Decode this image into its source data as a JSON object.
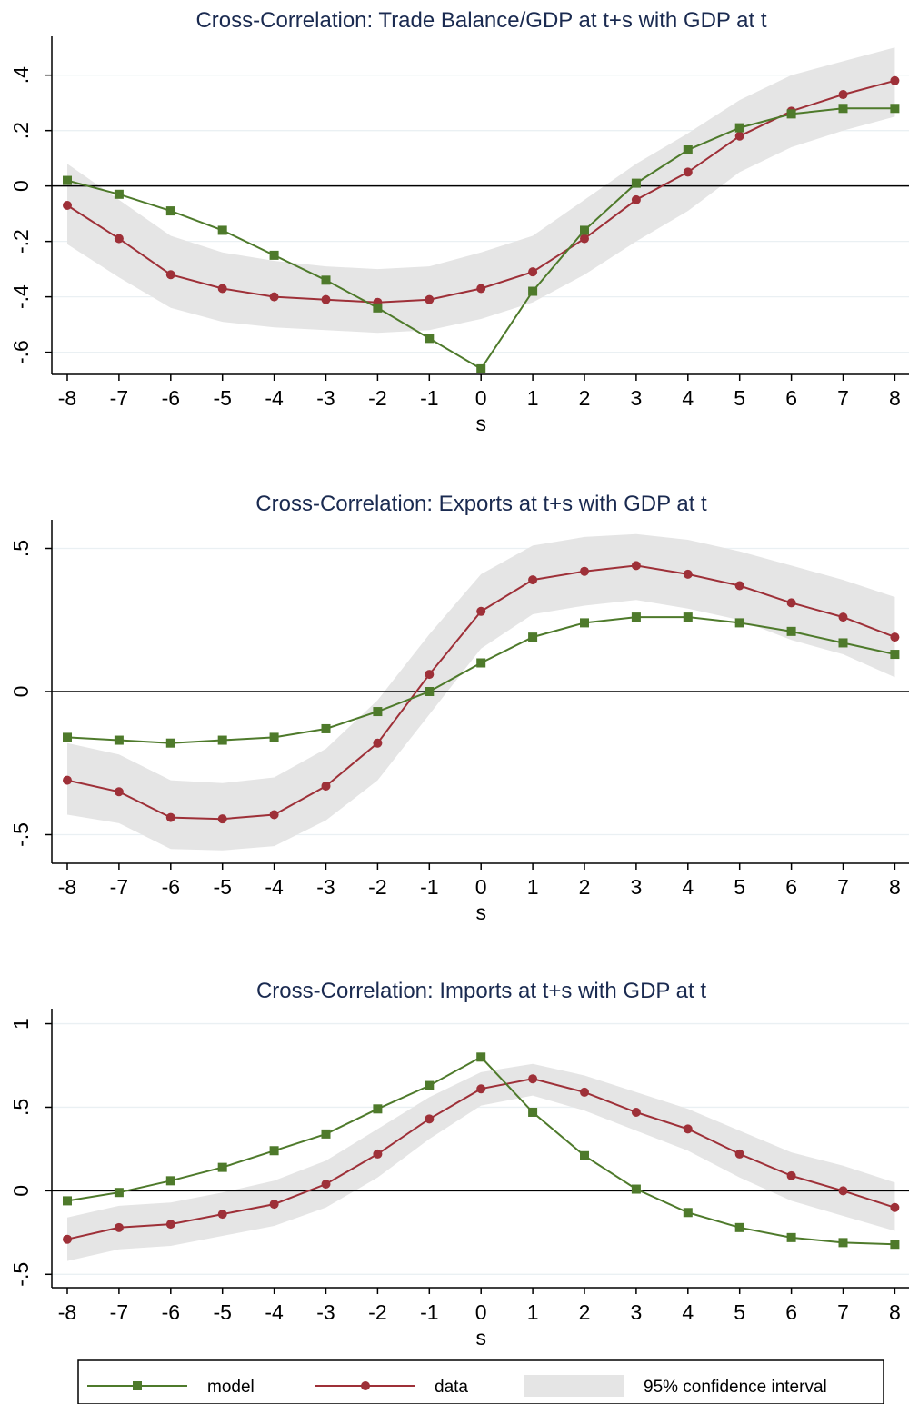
{
  "colors": {
    "model": "#4e7a2b",
    "data": "#9e3038",
    "ci": "#e5e5e5",
    "title": "#1a2a50"
  },
  "legend": {
    "model": "model",
    "data": "data",
    "ci": "95% confidence interval"
  },
  "chart_data": [
    {
      "type": "line",
      "title": "Cross-Correlation: Trade Balance/GDP at t+s with GDP at t",
      "xlabel": "s",
      "ylabel": "",
      "x": [
        -8,
        -7,
        -6,
        -5,
        -4,
        -3,
        -2,
        -1,
        0,
        1,
        2,
        3,
        4,
        5,
        6,
        7,
        8
      ],
      "xticks": [
        "-8",
        "-7",
        "-6",
        "-5",
        "-4",
        "-3",
        "-2",
        "-1",
        "0",
        "1",
        "2",
        "3",
        "4",
        "5",
        "6",
        "7",
        "8"
      ],
      "ylim": [
        -0.68,
        0.54
      ],
      "yticks": [
        {
          "v": -0.6,
          "t": "-.6"
        },
        {
          "v": -0.4,
          "t": "-.4"
        },
        {
          "v": -0.2,
          "t": "-.2"
        },
        {
          "v": 0,
          "t": "0"
        },
        {
          "v": 0.2,
          "t": ".2"
        },
        {
          "v": 0.4,
          "t": ".4"
        }
      ],
      "grid": true,
      "series": [
        {
          "name": "model",
          "values": [
            0.02,
            -0.03,
            -0.09,
            -0.16,
            -0.25,
            -0.34,
            -0.44,
            -0.55,
            -0.66,
            -0.38,
            -0.16,
            0.01,
            0.13,
            0.21,
            0.26,
            0.28,
            0.28
          ]
        },
        {
          "name": "data",
          "values": [
            -0.07,
            -0.19,
            -0.32,
            -0.37,
            -0.4,
            -0.41,
            -0.42,
            -0.41,
            -0.37,
            -0.31,
            -0.19,
            -0.05,
            0.05,
            0.18,
            0.27,
            0.33,
            0.38
          ]
        }
      ],
      "ci": {
        "lower": [
          -0.21,
          -0.33,
          -0.44,
          -0.49,
          -0.51,
          -0.52,
          -0.53,
          -0.52,
          -0.48,
          -0.42,
          -0.32,
          -0.2,
          -0.09,
          0.05,
          0.14,
          0.2,
          0.25
        ],
        "upper": [
          0.08,
          -0.05,
          -0.18,
          -0.24,
          -0.27,
          -0.29,
          -0.3,
          -0.29,
          -0.24,
          -0.18,
          -0.05,
          0.08,
          0.19,
          0.31,
          0.4,
          0.45,
          0.5
        ]
      }
    },
    {
      "type": "line",
      "title": "Cross-Correlation: Exports at t+s with GDP at t",
      "xlabel": "s",
      "ylabel": "",
      "x": [
        -8,
        -7,
        -6,
        -5,
        -4,
        -3,
        -2,
        -1,
        0,
        1,
        2,
        3,
        4,
        5,
        6,
        7,
        8
      ],
      "xticks": [
        "-8",
        "-7",
        "-6",
        "-5",
        "-4",
        "-3",
        "-2",
        "-1",
        "0",
        "1",
        "2",
        "3",
        "4",
        "5",
        "6",
        "7",
        "8"
      ],
      "ylim": [
        -0.6,
        0.6
      ],
      "yticks": [
        {
          "v": -0.5,
          "t": "-.5"
        },
        {
          "v": 0,
          "t": "0"
        },
        {
          "v": 0.5,
          "t": ".5"
        }
      ],
      "grid": true,
      "series": [
        {
          "name": "model",
          "values": [
            -0.16,
            -0.17,
            -0.18,
            -0.17,
            -0.16,
            -0.13,
            -0.07,
            0.0,
            0.1,
            0.19,
            0.24,
            0.26,
            0.26,
            0.24,
            0.21,
            0.17,
            0.13
          ]
        },
        {
          "name": "data",
          "values": [
            -0.31,
            -0.35,
            -0.44,
            -0.445,
            -0.43,
            -0.33,
            -0.18,
            0.06,
            0.28,
            0.39,
            0.42,
            0.44,
            0.41,
            0.37,
            0.31,
            0.26,
            0.19
          ]
        }
      ],
      "ci": {
        "lower": [
          -0.43,
          -0.46,
          -0.55,
          -0.555,
          -0.54,
          -0.45,
          -0.31,
          -0.08,
          0.15,
          0.27,
          0.3,
          0.32,
          0.29,
          0.25,
          0.18,
          0.13,
          0.05
        ],
        "upper": [
          -0.18,
          -0.22,
          -0.31,
          -0.32,
          -0.3,
          -0.2,
          -0.03,
          0.2,
          0.41,
          0.51,
          0.54,
          0.55,
          0.53,
          0.49,
          0.44,
          0.39,
          0.33
        ]
      }
    },
    {
      "type": "line",
      "title": "Cross-Correlation: Imports at t+s with GDP at t",
      "xlabel": "s",
      "ylabel": "",
      "x": [
        -8,
        -7,
        -6,
        -5,
        -4,
        -3,
        -2,
        -1,
        0,
        1,
        2,
        3,
        4,
        5,
        6,
        7,
        8
      ],
      "xticks": [
        "-8",
        "-7",
        "-6",
        "-5",
        "-4",
        "-3",
        "-2",
        "-1",
        "0",
        "1",
        "2",
        "3",
        "4",
        "5",
        "6",
        "7",
        "8"
      ],
      "ylim": [
        -0.58,
        1.09
      ],
      "yticks": [
        {
          "v": -0.5,
          "t": "-.5"
        },
        {
          "v": 0,
          "t": "0"
        },
        {
          "v": 0.5,
          "t": ".5"
        },
        {
          "v": 1,
          "t": "1"
        }
      ],
      "grid": true,
      "series": [
        {
          "name": "model",
          "values": [
            -0.06,
            -0.01,
            0.06,
            0.14,
            0.24,
            0.34,
            0.49,
            0.63,
            0.8,
            0.47,
            0.21,
            0.01,
            -0.13,
            -0.22,
            -0.28,
            -0.31,
            -0.32
          ]
        },
        {
          "name": "data",
          "values": [
            -0.29,
            -0.22,
            -0.2,
            -0.14,
            -0.08,
            0.04,
            0.22,
            0.43,
            0.61,
            0.67,
            0.59,
            0.47,
            0.37,
            0.22,
            0.09,
            0.0,
            -0.1
          ]
        }
      ],
      "ci": {
        "lower": [
          -0.42,
          -0.35,
          -0.33,
          -0.27,
          -0.21,
          -0.1,
          0.08,
          0.31,
          0.51,
          0.57,
          0.48,
          0.36,
          0.24,
          0.08,
          -0.06,
          -0.15,
          -0.24
        ],
        "upper": [
          -0.16,
          -0.09,
          -0.07,
          -0.01,
          0.06,
          0.18,
          0.37,
          0.56,
          0.71,
          0.76,
          0.69,
          0.59,
          0.49,
          0.36,
          0.23,
          0.15,
          0.05
        ]
      }
    }
  ]
}
